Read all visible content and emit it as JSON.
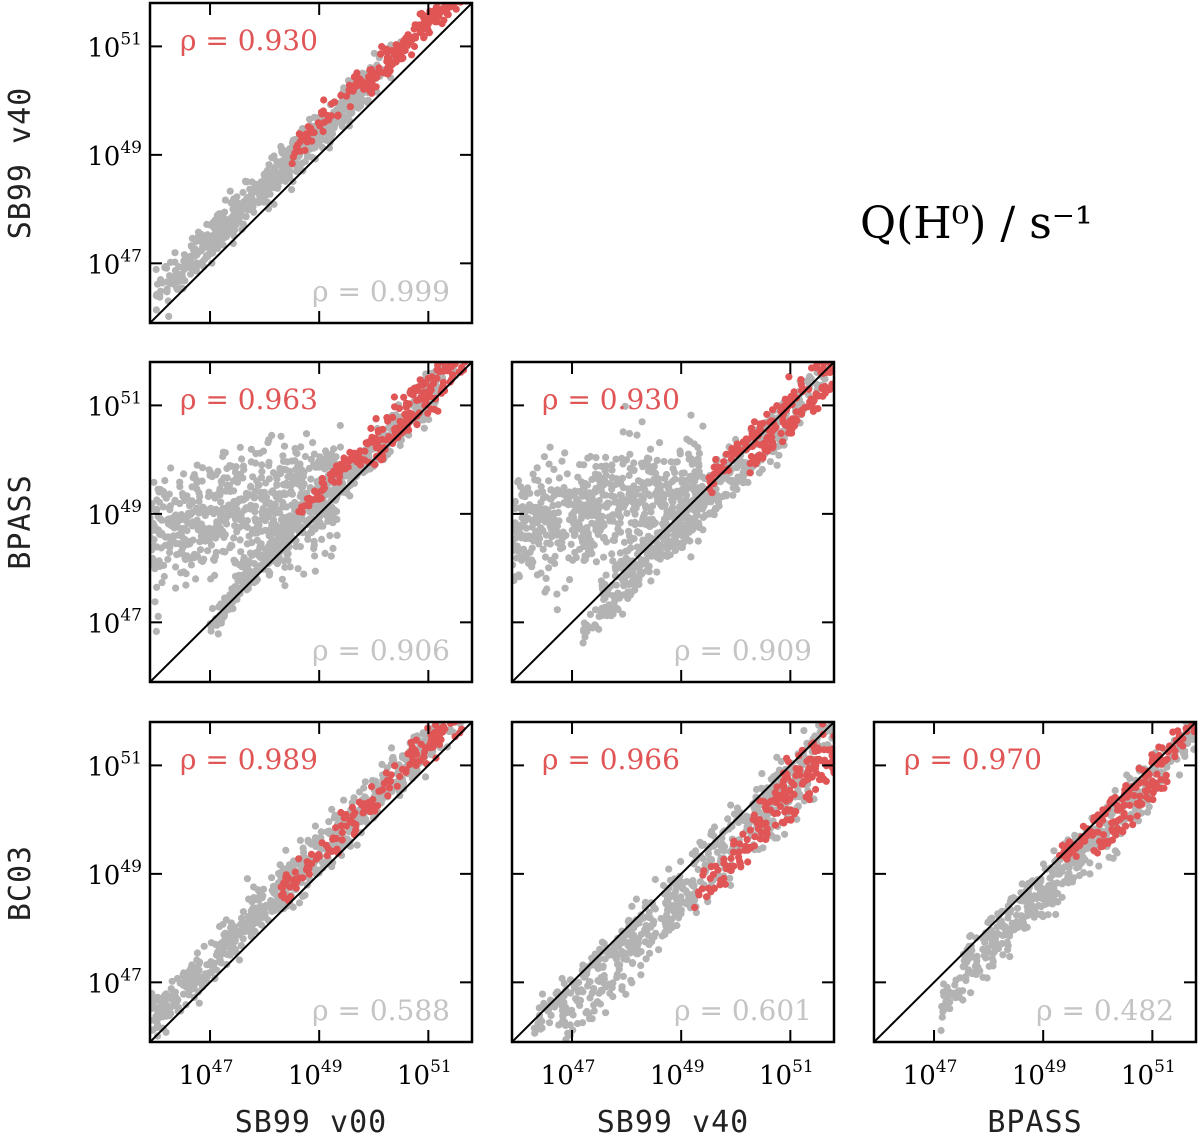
{
  "quantity_label": "Q(H⁰) / s⁻¹",
  "colors": {
    "gray": "#b3b3b3",
    "red": "#e05555",
    "line": "#000000"
  },
  "axis_names": {
    "rows": [
      "SB99 v40",
      "BPASS",
      "BC03"
    ],
    "cols": [
      "SB99 v00",
      "SB99 v40",
      "BPASS"
    ]
  },
  "chart_data": [
    {
      "type": "scatter",
      "id": "sb99v00-vs-sb99v40",
      "xlabel": "SB99 v00",
      "ylabel": "SB99 v40",
      "xlim": [
        45.9,
        51.8
      ],
      "ylim": [
        45.9,
        51.8
      ],
      "xticks": [
        "10^47",
        "10^49",
        "10^51"
      ],
      "yticks": [
        "10^47",
        "10^49",
        "10^51"
      ],
      "rho_red": "ρ = 0.930",
      "rho_gray": "ρ = 0.999",
      "gray_bands": [
        [
          46.0,
          49.0,
          0.45,
          0.2
        ],
        [
          46.2,
          50.0,
          0.3,
          0.15
        ],
        [
          47.0,
          50.5,
          0.5,
          0.15
        ]
      ],
      "red_bands": [
        [
          48.5,
          51.7,
          0.55,
          0.12
        ],
        [
          49.8,
          51.7,
          0.35,
          0.1
        ]
      ],
      "red_range_x": [
        48.5,
        51.7
      ]
    },
    {
      "type": "scatter",
      "id": "sb99v00-vs-bpass",
      "xlabel": "SB99 v00",
      "ylabel": "BPASS",
      "xlim": [
        45.9,
        51.8
      ],
      "ylim": [
        45.9,
        51.8
      ],
      "xticks": [
        "10^47",
        "10^49",
        "10^51"
      ],
      "yticks": [
        "10^47",
        "10^49",
        "10^51"
      ],
      "rho_red": "ρ = 0.963",
      "rho_gray": "ρ = 0.906",
      "gray_cloud": {
        "x_range": [
          45.9,
          49.4
        ],
        "y_center": 48.6,
        "y_spread": 1.2
      },
      "gray_bands": [
        [
          47.5,
          51.7,
          0.3,
          0.15
        ],
        [
          47.0,
          51.2,
          0.0,
          0.15
        ]
      ],
      "red_bands": [
        [
          48.6,
          51.7,
          0.4,
          0.12
        ],
        [
          50.0,
          51.7,
          0.05,
          0.1
        ]
      ]
    },
    {
      "type": "scatter",
      "id": "sb99v40-vs-bpass",
      "xlabel": "SB99 v40",
      "ylabel": "BPASS",
      "xlim": [
        45.9,
        51.8
      ],
      "ylim": [
        45.9,
        51.8
      ],
      "xticks": [
        "10^47",
        "10^49",
        "10^51"
      ],
      "yticks": [
        "10^47",
        "10^49",
        "10^51"
      ],
      "rho_red": "ρ = 0.930",
      "rho_gray": "ρ = 0.909",
      "gray_cloud": {
        "x_range": [
          45.9,
          49.4
        ],
        "y_center": 48.7,
        "y_spread": 1.1
      },
      "gray_bands": [
        [
          47.5,
          51.7,
          0.0,
          0.15
        ],
        [
          47.2,
          51.2,
          -0.4,
          0.15
        ]
      ],
      "red_bands": [
        [
          49.5,
          51.8,
          0.1,
          0.12
        ],
        [
          50.2,
          51.8,
          -0.35,
          0.12
        ]
      ]
    },
    {
      "type": "scatter",
      "id": "sb99v00-vs-bc03",
      "xlabel": "SB99 v00",
      "ylabel": "BC03",
      "xlim": [
        45.9,
        51.8
      ],
      "ylim": [
        45.9,
        51.8
      ],
      "xticks": [
        "10^47",
        "10^49",
        "10^51"
      ],
      "yticks": [
        "10^47",
        "10^49",
        "10^51"
      ],
      "rho_red": "ρ = 0.989",
      "rho_gray": "ρ = 0.588",
      "gray_bands": [
        [
          45.9,
          51.7,
          0.5,
          0.22
        ],
        [
          46.0,
          51.0,
          0.25,
          0.18
        ]
      ],
      "red_bands": [
        [
          48.3,
          51.7,
          0.35,
          0.15
        ]
      ]
    },
    {
      "type": "scatter",
      "id": "sb99v40-vs-bc03",
      "xlabel": "SB99 v40",
      "ylabel": "BC03",
      "xlim": [
        45.9,
        51.8
      ],
      "ylim": [
        45.9,
        51.8
      ],
      "xticks": [
        "10^47",
        "10^49",
        "10^51"
      ],
      "yticks": [
        "10^47",
        "10^49",
        "10^51"
      ],
      "rho_red": "ρ = 0.966",
      "rho_gray": "ρ = 0.601",
      "gray_bands": [
        [
          46.3,
          51.8,
          -0.1,
          0.18
        ],
        [
          46.8,
          51.5,
          -0.6,
          0.25
        ]
      ],
      "red_bands": [
        [
          49.2,
          51.8,
          -0.7,
          0.2
        ],
        [
          50.4,
          51.8,
          -0.25,
          0.2
        ]
      ]
    },
    {
      "type": "scatter",
      "id": "bpass-vs-bc03",
      "xlabel": "BPASS",
      "ylabel": "BC03",
      "xlim": [
        45.9,
        51.8
      ],
      "ylim": [
        45.9,
        51.8
      ],
      "xticks": [
        "10^47",
        "10^49",
        "10^51"
      ],
      "yticks": [
        "10^47",
        "10^49",
        "10^51"
      ],
      "rho_red": "ρ = 0.970",
      "rho_gray": "ρ = 0.482",
      "gray_bands": [
        [
          47.5,
          51.8,
          -0.15,
          0.18
        ],
        [
          47.1,
          51.2,
          -0.5,
          0.2
        ]
      ],
      "red_bands": [
        [
          49.3,
          51.8,
          -0.05,
          0.12
        ],
        [
          49.9,
          51.3,
          -0.45,
          0.12
        ]
      ]
    }
  ]
}
